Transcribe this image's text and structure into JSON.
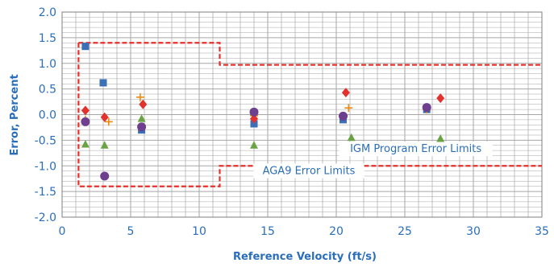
{
  "chart_data": {
    "type": "scatter",
    "title": "",
    "xlabel": "Reference Velocity (ft/s)",
    "ylabel": "Error, Percent",
    "xlim": [
      0,
      35
    ],
    "ylim": [
      -2.0,
      2.0
    ],
    "x_ticks": [
      "0",
      "5",
      "10",
      "15",
      "20",
      "25",
      "30",
      "35"
    ],
    "y_ticks": [
      "2.0",
      "1.5",
      "1.0",
      "0.5",
      "0.0",
      "-0.5",
      "-1.0",
      "-1.5",
      "-2.0"
    ],
    "x_tick_values": [
      0,
      5,
      10,
      15,
      20,
      25,
      30,
      35
    ],
    "y_tick_values": [
      2.0,
      1.5,
      1.0,
      0.5,
      0.0,
      -0.5,
      -1.0,
      -1.5,
      -2.0
    ],
    "grid": true,
    "colors": {
      "axis_text": "#2a6ebb",
      "grid": "#a6a6a6",
      "limits": "#e8302a",
      "series": [
        "#3b6fb6",
        "#ef8a0e",
        "#e3312d",
        "#6d3f8e",
        "#6aa343"
      ]
    },
    "series": [
      {
        "marker": "square",
        "color": "#3b6fb6",
        "points": [
          [
            1.7,
            1.33
          ],
          [
            3.0,
            0.62
          ],
          [
            5.8,
            -0.3
          ],
          [
            14.0,
            -0.18
          ],
          [
            20.5,
            -0.1
          ],
          [
            26.6,
            0.1
          ]
        ]
      },
      {
        "marker": "plus",
        "color": "#ef8a0e",
        "points": [
          [
            1.7,
            -0.1
          ],
          [
            3.4,
            -0.14
          ],
          [
            5.7,
            0.34
          ],
          [
            14.0,
            -0.02
          ],
          [
            20.9,
            0.13
          ],
          [
            26.6,
            0.1
          ]
        ]
      },
      {
        "marker": "diamond",
        "color": "#e3312d",
        "points": [
          [
            1.7,
            0.08
          ],
          [
            3.1,
            -0.05
          ],
          [
            5.9,
            0.2
          ],
          [
            14.0,
            -0.08
          ],
          [
            20.7,
            0.43
          ],
          [
            27.6,
            0.32
          ]
        ]
      },
      {
        "marker": "circle",
        "color": "#6d3f8e",
        "points": [
          [
            1.7,
            -0.14
          ],
          [
            3.1,
            -1.2
          ],
          [
            5.8,
            -0.24
          ],
          [
            14.0,
            0.05
          ],
          [
            20.5,
            -0.03
          ],
          [
            26.6,
            0.14
          ]
        ]
      },
      {
        "marker": "triangle",
        "color": "#6aa343",
        "points": [
          [
            1.7,
            -0.58
          ],
          [
            3.1,
            -0.6
          ],
          [
            5.8,
            -0.08
          ],
          [
            14.0,
            -0.6
          ],
          [
            21.1,
            -0.45
          ],
          [
            27.6,
            -0.47
          ]
        ]
      }
    ],
    "limit_lines": [
      {
        "name": "IGM Program Error Limits",
        "label_at": [
          25.8,
          -0.73
        ],
        "upper": [
          [
            1.2,
            1.4
          ],
          [
            11.5,
            1.4
          ],
          [
            11.5,
            0.97
          ],
          [
            35,
            0.97
          ]
        ]
      },
      {
        "name": "AGA9 Error Limits",
        "label_at": [
          18.0,
          -1.16
        ],
        "path": [
          [
            1.2,
            1.4
          ],
          [
            1.2,
            -1.4
          ],
          [
            11.5,
            -1.4
          ],
          [
            11.5,
            -1.0
          ],
          [
            35,
            -1.0
          ]
        ]
      }
    ]
  }
}
